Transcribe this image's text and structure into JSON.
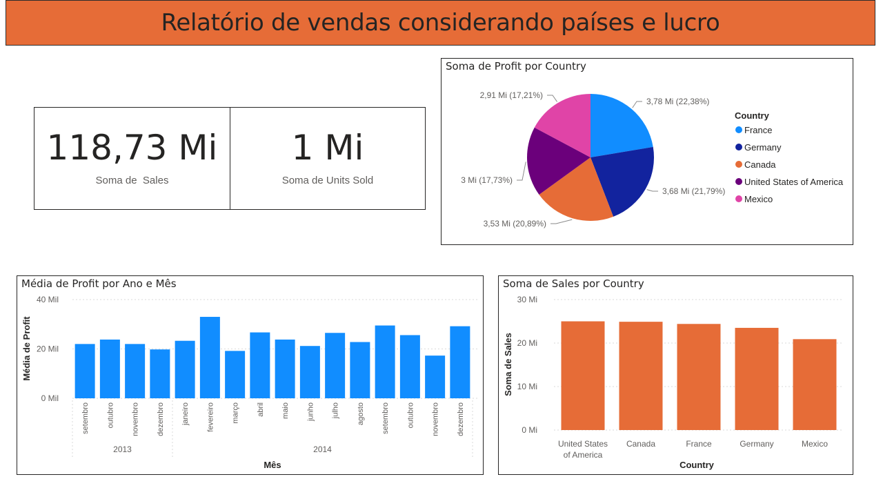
{
  "header": {
    "title": "Relatório de vendas considerando países e lucro"
  },
  "kpis": [
    {
      "value": "118,73 Mi",
      "label": "Soma de  Sales"
    },
    {
      "value": "1 Mi",
      "label": "Soma de Units Sold"
    }
  ],
  "colors": {
    "header_bg": "#E66C37",
    "bar_blue": "#118DFF",
    "bar_orange": "#E66C37"
  },
  "chart_data": [
    {
      "type": "pie",
      "title": "Soma de Profit por Country",
      "legend_title": "Country",
      "legend_position": "right",
      "slices": [
        {
          "name": "France",
          "value": 3.78,
          "label": "3,78 Mi (22,38%)",
          "color": "#118DFF"
        },
        {
          "name": "Germany",
          "value": 3.68,
          "label": "3,68 Mi (21,79%)",
          "color": "#12239E"
        },
        {
          "name": "Canada",
          "value": 3.53,
          "label": "3,53 Mi (20,89%)",
          "color": "#E66C37"
        },
        {
          "name": "United States of America",
          "value": 3.0,
          "label": "3 Mi (17,73%)",
          "color": "#6B007B"
        },
        {
          "name": "Mexico",
          "value": 2.91,
          "label": "2,91 Mi (17,21%)",
          "color": "#E044A7"
        }
      ]
    },
    {
      "type": "bar",
      "title": "Média de Profit por Ano e Mês",
      "xlabel": "Mês",
      "ylabel": "Média de Profit",
      "ylim": [
        0,
        40000
      ],
      "yticks": [
        "0 Mil",
        "20 Mil",
        "40 Mil"
      ],
      "categories": [
        "setembro",
        "outubro",
        "novembro",
        "dezembro",
        "janeiro",
        "fevereiro",
        "março",
        "abril",
        "maio",
        "junho",
        "julho",
        "agosto",
        "setembro",
        "outubro",
        "novembro",
        "dezembro"
      ],
      "years": [
        {
          "label": "2013",
          "count": 4
        },
        {
          "label": "2014",
          "count": 12
        }
      ],
      "values": [
        22000,
        23800,
        22000,
        19800,
        23300,
        33000,
        19200,
        26700,
        23800,
        21200,
        26500,
        22800,
        29500,
        25600,
        17300,
        29200
      ],
      "color": "#118DFF",
      "grid": true
    },
    {
      "type": "bar",
      "title": "Soma de Sales por Country",
      "xlabel": "Country",
      "ylabel": "Soma de Sales",
      "ylim": [
        0,
        30000000
      ],
      "yticks": [
        "0 Mi",
        "10 Mi",
        "20 Mi",
        "30 Mi"
      ],
      "categories": [
        "United States\nof America",
        "Canada",
        "France",
        "Germany",
        "Mexico"
      ],
      "values": [
        25000000,
        24900000,
        24400000,
        23500000,
        20900000
      ],
      "color": "#E66C37",
      "grid": true
    }
  ]
}
